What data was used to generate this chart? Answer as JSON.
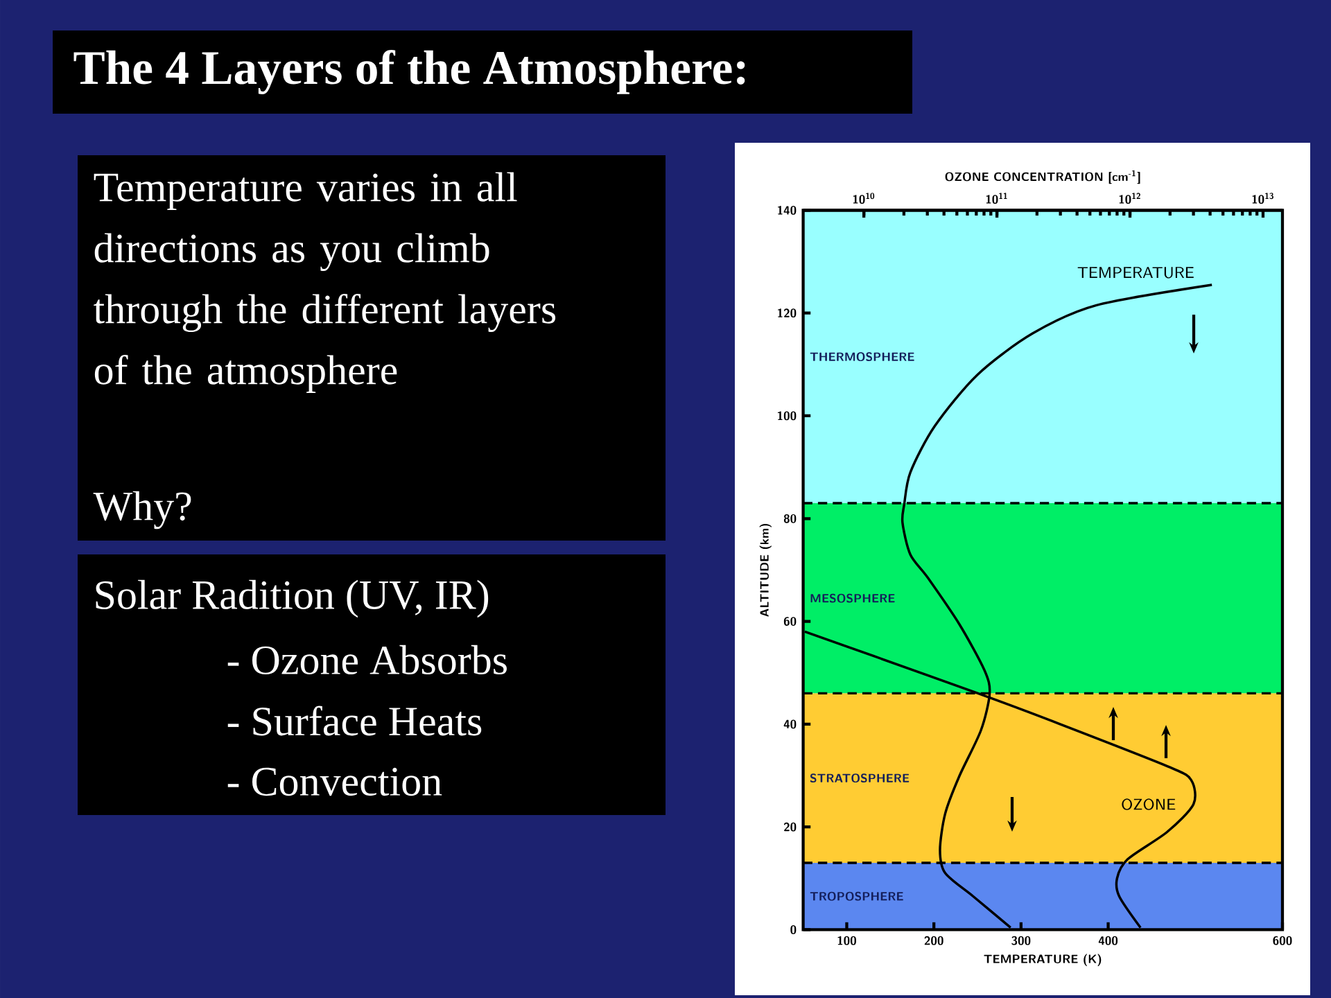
{
  "chart_data": {
    "type": "line",
    "title": "The 4 Layers of the Atmosphere:",
    "annotations": [
      "Temperature varies in all directions as you climb through the different layers of the atmosphere",
      "Why?",
      "Solar Radition (UV, IR)",
      "- Ozone Absorbs",
      "- Surface Heats",
      "- Convection"
    ],
    "xlabel": "TEMPERATURE (K)",
    "ylabel": "ALTITUDE (km)",
    "x2label": "OZONE CONCENTRATION [cm$^{-1}$]",
    "xlim": [
      50,
      600
    ],
    "xticks": [
      100,
      200,
      300,
      400,
      600
    ],
    "x2lim": [
      3500000000.0,
      14000000000000.0
    ],
    "x2ticks": [
      {
        "value": 10000000000.0,
        "label": "10$^{10}$"
      },
      {
        "value": 100000000000.0,
        "label": "10$^{11}$"
      },
      {
        "value": 1000000000000.0,
        "label": "10$^{12}$"
      },
      {
        "value": 10000000000000.0,
        "label": "10$^{13}$"
      }
    ],
    "log": "x2",
    "ylim": [
      0,
      140
    ],
    "yticks": [
      0,
      20,
      40,
      60,
      80,
      100,
      120,
      140
    ],
    "bands": [
      {
        "axis": "y",
        "from": 0,
        "to": 13,
        "label": "TROPOSPHERE",
        "color": "#5b87f0"
      },
      {
        "axis": "y",
        "from": 13,
        "to": 46,
        "label": "STRATOSPHERE",
        "color": "#ffcc33"
      },
      {
        "axis": "y",
        "from": 46,
        "to": 83,
        "label": "MESOSPHERE",
        "color": "#00ee66"
      },
      {
        "axis": "y",
        "from": 83,
        "to": 140,
        "label": "THERMOSPHERE",
        "color": "#99ffff"
      }
    ],
    "ref_lines": [
      {
        "axis": "y",
        "value": 13,
        "line_style": "dashed"
      },
      {
        "axis": "y",
        "value": 46,
        "line_style": "dashed"
      },
      {
        "axis": "y",
        "value": 83,
        "line_style": "dashed"
      }
    ],
    "marker": "none",
    "line_style": "solid",
    "series": [
      {
        "name": "TEMPERATURE",
        "color": "#000000",
        "x": [
          288,
          245,
          213,
          207,
          213,
          229,
          254,
          264,
          258,
          229,
          193,
          173,
          164,
          166,
          173,
          201,
          250,
          313,
          386,
          519
        ],
        "values": [
          0.4,
          6.5,
          11,
          15.5,
          22.6,
          29.8,
          38.8,
          46,
          50.5,
          59.5,
          68.5,
          73,
          79.2,
          82.8,
          89,
          98,
          108,
          116,
          121.5,
          125.5
        ]
      },
      {
        "name": "OZONE",
        "color": "#000000",
        "axis": "x2",
        "x": [
          1200000000000.0,
          830000000000.0,
          800000000000.0,
          960000000000.0,
          1900000000000.0,
          3000000000000.0,
          2900000000000.0,
          2000000000000.0,
          260000000000.0,
          72000000000.0,
          12000000000.0,
          3600000000.0
        ],
        "values": [
          0.4,
          6.5,
          10,
          13.7,
          19,
          24.4,
          29,
          31.6,
          40.6,
          46,
          53.2,
          58
        ]
      }
    ]
  }
}
